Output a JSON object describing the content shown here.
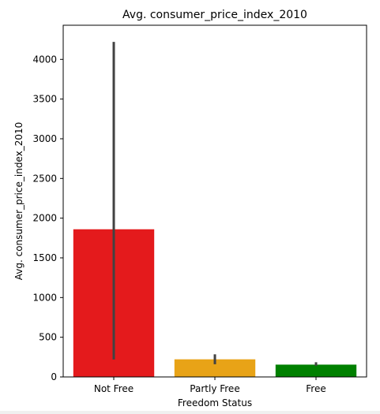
{
  "chart_data": {
    "type": "bar",
    "title": "Avg. consumer_price_index_2010",
    "xlabel": "Freedom Status",
    "ylabel": "Avg. consumer_price_index_2010",
    "categories": [
      "Not Free",
      "Partly Free",
      "Free"
    ],
    "values": [
      1860,
      222,
      155
    ],
    "error_bars": [
      {
        "low": 220,
        "high": 4220
      },
      {
        "low": 160,
        "high": 285
      },
      {
        "low": 140,
        "high": 185
      }
    ],
    "colors": [
      "#e41a1c",
      "#e8a317",
      "#008000"
    ],
    "error_bar_color": "#424242",
    "ylim": [
      0,
      4430
    ],
    "yticks": [
      0,
      500,
      1000,
      1500,
      2000,
      2500,
      3000,
      3500,
      4000
    ],
    "grid": false,
    "legend": "none"
  }
}
